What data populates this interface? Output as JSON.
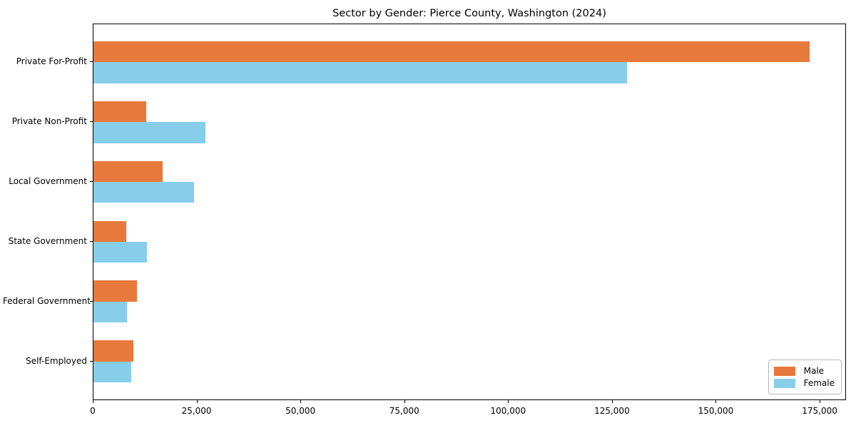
{
  "title": "Sector by Gender: Pierce County, Washington (2024)",
  "colors": {
    "male": "#E8793C",
    "female": "#87CEEB",
    "axis": "#000000",
    "legend_border": "#b7b7b7",
    "background": "#ffffff"
  },
  "chart_data": {
    "type": "bar",
    "orientation": "horizontal",
    "title": "Sector by Gender: Pierce County, Washington (2024)",
    "xlabel": "",
    "ylabel": "",
    "categories": [
      "Private For-Profit",
      "Private Non-Profit",
      "Local Government",
      "State Government",
      "Federal Government",
      "Self-Employed"
    ],
    "series": [
      {
        "name": "Male",
        "color": "#E8793C",
        "values": [
          172400,
          12700,
          16600,
          7900,
          10500,
          9600
        ]
      },
      {
        "name": "Female",
        "color": "#87CEEB",
        "values": [
          128400,
          27000,
          24200,
          12900,
          8100,
          9100
        ]
      }
    ],
    "xlim": [
      0,
      181000
    ],
    "xticks": [
      0,
      25000,
      50000,
      75000,
      100000,
      125000,
      150000,
      175000
    ],
    "xtick_labels": [
      "0",
      "25,000",
      "50,000",
      "75,000",
      "100,000",
      "125,000",
      "150,000",
      "175,000"
    ],
    "grid": false,
    "legend": {
      "position": "lower right",
      "entries": [
        "Male",
        "Female"
      ]
    }
  }
}
